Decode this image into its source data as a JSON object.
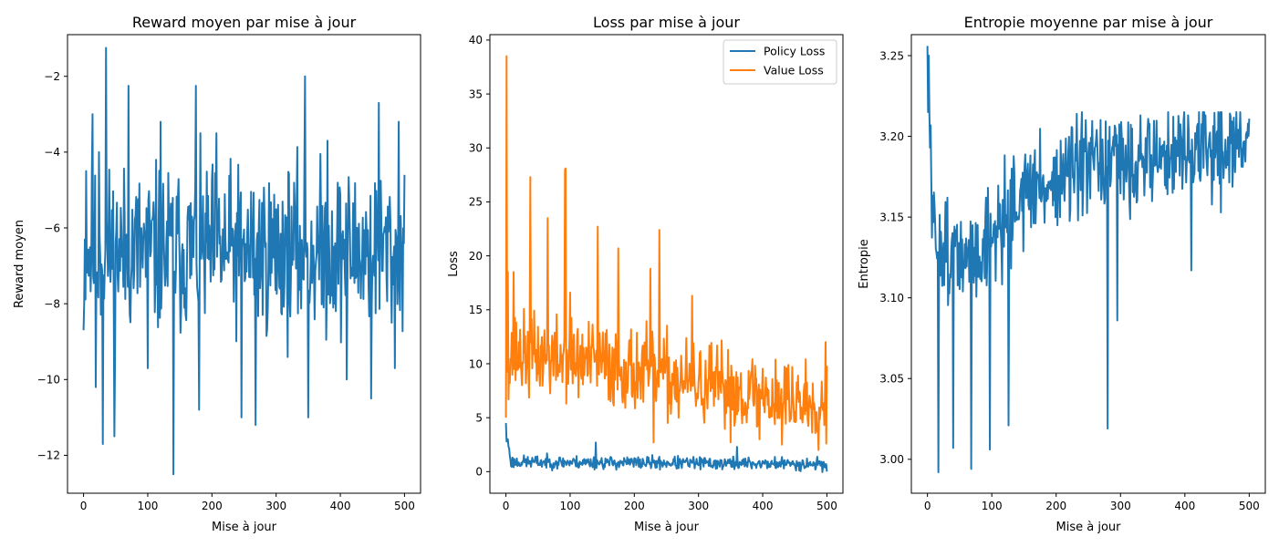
{
  "chart_data": [
    {
      "type": "line",
      "title": "Reward moyen par mise à jour",
      "xlabel": "Mise à jour",
      "ylabel": "Reward moyen",
      "xlim": [
        -25,
        525
      ],
      "ylim": [
        -13.0,
        -0.9
      ],
      "xticks": [
        "0",
        "100",
        "200",
        "300",
        "400",
        "500"
      ],
      "xtick_values": [
        0,
        100,
        200,
        300,
        400,
        500
      ],
      "yticks": [
        "−12",
        "−10",
        "−8",
        "−6",
        "−4",
        "−2"
      ],
      "ytick_values": [
        -12,
        -10,
        -8,
        -6,
        -4,
        -2
      ],
      "legend": "none",
      "grid": false,
      "series": [
        {
          "color": "#1f77b4",
          "x_range": [
            0,
            500
          ],
          "seed": 11,
          "baseline": [
            [
              0,
              -6.6
            ],
            [
              500,
              -6.6
            ]
          ],
          "noise": 1.55,
          "clamp": [
            -12.5,
            -1.25
          ],
          "anchors": [
            [
              0,
              -8.7
            ],
            [
              4,
              -4.5
            ],
            [
              9,
              -7.2
            ],
            [
              14,
              -3.0
            ],
            [
              19,
              -10.2
            ],
            [
              24,
              -4.0
            ],
            [
              30,
              -11.7
            ],
            [
              35,
              -1.25
            ],
            [
              48,
              -11.5
            ],
            [
              70,
              -2.25
            ],
            [
              100,
              -9.7
            ],
            [
              120,
              -3.2
            ],
            [
              140,
              -12.5
            ],
            [
              175,
              -2.25
            ],
            [
              180,
              -10.8
            ],
            [
              207,
              -3.5
            ],
            [
              246,
              -11.0
            ],
            [
              268,
              -11.2
            ],
            [
              345,
              -2.0
            ],
            [
              350,
              -11.0
            ],
            [
              380,
              -3.7
            ],
            [
              410,
              -10.0
            ],
            [
              448,
              -10.5
            ],
            [
              460,
              -2.7
            ],
            [
              485,
              -9.7
            ],
            [
              491,
              -3.2
            ],
            [
              500,
              -4.6
            ]
          ]
        }
      ]
    },
    {
      "type": "line",
      "title": "Loss par mise à jour",
      "xlabel": "Mise à jour",
      "ylabel": "Loss",
      "xlim": [
        -25,
        525
      ],
      "ylim": [
        -2.0,
        40.5
      ],
      "xticks": [
        "0",
        "100",
        "200",
        "300",
        "400",
        "500"
      ],
      "xtick_values": [
        0,
        100,
        200,
        300,
        400,
        500
      ],
      "yticks": [
        "0",
        "5",
        "10",
        "15",
        "20",
        "25",
        "30",
        "35",
        "40"
      ],
      "ytick_values": [
        0,
        5,
        10,
        15,
        20,
        25,
        30,
        35,
        40
      ],
      "legend": "top-right",
      "grid": false,
      "series": [
        {
          "name": "Policy Loss",
          "color": "#1f77b4",
          "x_range": [
            0,
            500
          ],
          "seed": 23,
          "baseline": [
            [
              0,
              4.5
            ],
            [
              4,
              2.5
            ],
            [
              8,
              0.9
            ],
            [
              500,
              0.7
            ]
          ],
          "noise": 0.42,
          "clamp": [
            -0.3,
            2.8
          ],
          "anchors": [
            [
              0,
              4.5
            ],
            [
              3,
              3.0
            ],
            [
              8,
              0.5
            ],
            [
              140,
              2.7
            ],
            [
              360,
              2.3
            ],
            [
              500,
              0.0
            ]
          ]
        },
        {
          "name": "Value Loss",
          "color": "#ff7f0e",
          "x_range": [
            0,
            500
          ],
          "seed": 37,
          "baseline": [
            [
              0,
              11.0
            ],
            [
              150,
              10.0
            ],
            [
              300,
              8.0
            ],
            [
              500,
              6.2
            ]
          ],
          "noise": 2.7,
          "clamp": [
            2.0,
            40.0
          ],
          "anchors": [
            [
              0,
              5.0
            ],
            [
              1,
              38.5
            ],
            [
              3,
              18.5
            ],
            [
              6,
              8.2
            ],
            [
              12,
              18.5
            ],
            [
              38,
              27.3
            ],
            [
              65,
              23.5
            ],
            [
              92,
              28.0
            ],
            [
              93,
              28.1
            ],
            [
              100,
              16.6
            ],
            [
              143,
              22.7
            ],
            [
              175,
              20.7
            ],
            [
              225,
              18.8
            ],
            [
              230,
              2.7
            ],
            [
              239,
              22.4
            ],
            [
              290,
              16.3
            ],
            [
              395,
              3.0
            ],
            [
              430,
              2.5
            ],
            [
              498,
              12.0
            ],
            [
              499,
              2.6
            ],
            [
              500,
              9.8
            ]
          ]
        }
      ]
    },
    {
      "type": "line",
      "title": "Entropie moyenne par mise à jour",
      "xlabel": "Mise à jour",
      "ylabel": "Entropie",
      "xlim": [
        -25,
        525
      ],
      "ylim": [
        2.979,
        3.263
      ],
      "xticks": [
        "0",
        "100",
        "200",
        "300",
        "400",
        "500"
      ],
      "xtick_values": [
        0,
        100,
        200,
        300,
        400,
        500
      ],
      "yticks": [
        "3.00",
        "3.05",
        "3.10",
        "3.15",
        "3.20",
        "3.25"
      ],
      "ytick_values": [
        3.0,
        3.05,
        3.1,
        3.15,
        3.2,
        3.25
      ],
      "legend": "none",
      "grid": false,
      "series": [
        {
          "color": "#1f77b4",
          "x_range": [
            0,
            500
          ],
          "seed": 51,
          "baseline": [
            [
              0,
              3.256
            ],
            [
              3,
              3.22
            ],
            [
              8,
              3.14
            ],
            [
              60,
              3.12
            ],
            [
              150,
              3.165
            ],
            [
              250,
              3.18
            ],
            [
              400,
              3.19
            ],
            [
              500,
              3.195
            ]
          ],
          "noise": 0.022,
          "clamp": [
            2.99,
            3.215
          ],
          "anchors": [
            [
              0,
              3.256
            ],
            [
              2,
              3.25
            ],
            [
              17,
              2.992
            ],
            [
              40,
              3.007
            ],
            [
              68,
              2.994
            ],
            [
              97,
              3.006
            ],
            [
              126,
              3.021
            ],
            [
              280,
              3.019
            ],
            [
              295,
              3.086
            ],
            [
              405,
              3.213
            ],
            [
              410,
              3.117
            ],
            [
              480,
              3.215
            ],
            [
              500,
              3.211
            ]
          ]
        }
      ]
    }
  ]
}
